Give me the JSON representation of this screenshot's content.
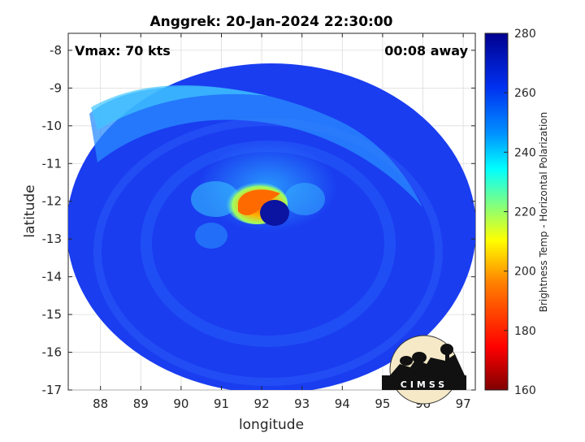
{
  "title": "Anggrek: 20-Jan-2024 22:30:00",
  "vmax_label": "Vmax: 70 kts",
  "time_away_label": "00:08 away",
  "x_axis": {
    "label": "longitude",
    "ticks": [
      "88",
      "89",
      "90",
      "91",
      "92",
      "93",
      "94",
      "95",
      "96",
      "97"
    ],
    "range": [
      87.2,
      97.3
    ]
  },
  "y_axis": {
    "label": "latitude",
    "ticks": [
      "-8",
      "-9",
      "-10",
      "-11",
      "-12",
      "-13",
      "-14",
      "-15",
      "-16",
      "-17"
    ],
    "range": [
      -17,
      -7.55
    ]
  },
  "colorbar": {
    "label": "Brightness Temp - Horizontal Polarization",
    "ticks": [
      "280",
      "260",
      "240",
      "220",
      "200",
      "180",
      "160"
    ],
    "range": [
      160,
      280
    ],
    "colors": [
      "#7f0000",
      "#ff0000",
      "#ff8000",
      "#ffff00",
      "#80ff80",
      "#00ffff",
      "#0080ff",
      "#0000ff",
      "#00008f"
    ]
  },
  "logo": {
    "text": "CIMSS"
  },
  "colors": {
    "background_blue": "#1a3df0",
    "eyewall_hot": "#ff7a00",
    "eye_dark": "#00008f"
  }
}
